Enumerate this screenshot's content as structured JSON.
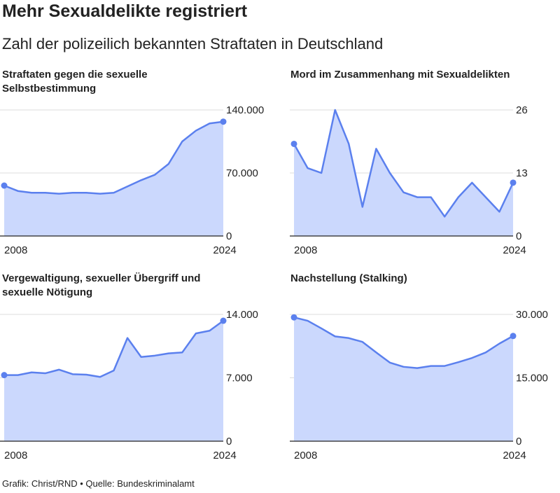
{
  "title": "Mehr Sexualdelikte registriert",
  "subtitle": "Zahl der polizeilich bekannten Straftaten in Deutschland",
  "footer": "Grafik: Christ/RND • Quelle: Bundeskriminalamt",
  "colors": {
    "line": "#5b80ee",
    "fill": "#cbd8fd",
    "grid": "#dcdcdc",
    "axis": "#222222"
  },
  "chart_data": [
    {
      "type": "area",
      "title": "Straftaten gegen die sexuelle Selbstbestimmung",
      "x": [
        2008,
        2009,
        2010,
        2011,
        2012,
        2013,
        2014,
        2015,
        2016,
        2017,
        2018,
        2019,
        2020,
        2021,
        2022,
        2023,
        2024
      ],
      "values": [
        56000,
        50000,
        48000,
        48000,
        47000,
        48000,
        48000,
        47000,
        48000,
        55000,
        62000,
        68000,
        80000,
        105000,
        117000,
        125000,
        127000
      ],
      "ylim": [
        0,
        140000
      ],
      "yticks": [
        "0",
        "70.000",
        "140.000"
      ],
      "xticks": [
        "2008",
        "2024"
      ]
    },
    {
      "type": "area",
      "title": "Mord im Zusammenhang mit Sexualdelikten",
      "x": [
        2008,
        2009,
        2010,
        2011,
        2012,
        2013,
        2014,
        2015,
        2016,
        2017,
        2018,
        2019,
        2020,
        2021,
        2022,
        2023,
        2024
      ],
      "values": [
        19,
        14,
        13,
        26,
        19,
        6,
        18,
        13,
        9,
        8,
        8,
        4,
        8,
        11,
        8,
        5,
        11
      ],
      "ylim": [
        0,
        26
      ],
      "yticks": [
        "0",
        "13",
        "26"
      ],
      "xticks": [
        "2008",
        "2024"
      ]
    },
    {
      "type": "area",
      "title": "Vergewaltigung, sexueller Übergriff und sexuelle Nötigung",
      "x": [
        2008,
        2009,
        2010,
        2011,
        2012,
        2013,
        2014,
        2015,
        2016,
        2017,
        2018,
        2019,
        2020,
        2021,
        2022,
        2023,
        2024
      ],
      "values": [
        7300,
        7300,
        7600,
        7500,
        7900,
        7400,
        7350,
        7100,
        7800,
        11400,
        9300,
        9450,
        9700,
        9800,
        11900,
        12200,
        13300
      ],
      "ylim": [
        0,
        14000
      ],
      "yticks": [
        "0",
        "7.000",
        "14.000"
      ],
      "xticks": [
        "2008",
        "2024"
      ]
    },
    {
      "type": "area",
      "title": "Nachstellung (Stalking)",
      "x": [
        2008,
        2009,
        2010,
        2011,
        2012,
        2013,
        2014,
        2015,
        2016,
        2017,
        2018,
        2019,
        2020,
        2021,
        2022,
        2023,
        2024
      ],
      "values": [
        29300,
        28500,
        26700,
        24800,
        24400,
        23500,
        21000,
        18600,
        17600,
        17300,
        17800,
        17800,
        18700,
        19700,
        21000,
        23100,
        24900
      ],
      "ylim": [
        0,
        30000
      ],
      "yticks": [
        "0",
        "15.000",
        "30.000"
      ],
      "xticks": [
        "2008",
        "2024"
      ]
    }
  ]
}
